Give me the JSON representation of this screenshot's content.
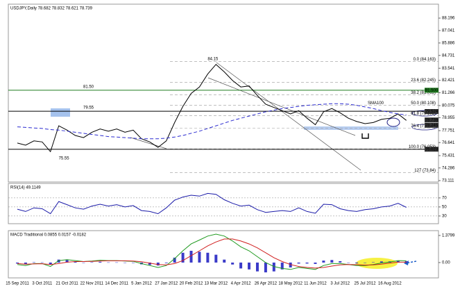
{
  "chart_data": [
    {
      "type": "line",
      "title": "USDJPY,Daily 78.682 78.832 78.621 78.739",
      "categories": [
        "15 Sep 2011",
        null,
        null,
        "3 Oct 2011",
        null,
        null,
        "21 Oct 2011",
        null,
        null,
        "22 Nov 2011",
        null,
        null,
        "14 Dec 2011",
        null,
        null,
        "5 Jan 2012",
        null,
        null,
        "27 Jan 2012",
        null,
        null,
        "20 Feb 2012",
        null,
        null,
        "13 Mar 2012",
        null,
        null,
        "4 Apr 2012",
        null,
        null,
        "26 Apr 2012",
        null,
        null,
        "18 May 2012",
        null,
        null,
        "11 Jun 2012",
        null,
        null,
        "3 Jul 2012",
        null,
        null,
        "25 Jul 2012",
        null,
        null,
        "16 Aug 2012",
        null,
        null
      ],
      "series": [
        {
          "color": "#000000",
          "values": [
            76.6,
            76.4,
            76.8,
            76.7,
            75.8,
            78.2,
            77.8,
            77.3,
            77.1,
            77.6,
            77.9,
            77.7,
            77.9,
            77.6,
            77.8,
            77.0,
            76.7,
            76.2,
            76.8,
            78.5,
            80.0,
            81.2,
            81.8,
            83.0,
            83.9,
            83.2,
            82.4,
            81.8,
            81.9,
            81.0,
            80.2,
            79.9,
            79.6,
            79.3,
            79.6,
            78.9,
            78.3,
            79.5,
            79.8,
            79.4,
            78.9,
            78.6,
            78.4,
            78.5,
            78.8,
            78.9,
            79.3,
            78.7
          ]
        },
        {
          "name": "SMA100",
          "color": "#2b2bd0",
          "dashed": true,
          "values": [
            78.1,
            78.05,
            78.0,
            77.95,
            77.85,
            77.8,
            77.7,
            77.6,
            77.5,
            77.4,
            77.3,
            77.2,
            77.15,
            77.1,
            77.05,
            77.0,
            77.0,
            77.0,
            77.05,
            77.15,
            77.3,
            77.5,
            77.7,
            77.95,
            78.2,
            78.45,
            78.7,
            78.9,
            79.1,
            79.3,
            79.5,
            79.65,
            79.8,
            79.9,
            80.0,
            80.1,
            80.15,
            80.2,
            80.25,
            80.25,
            80.2,
            80.1,
            79.95,
            79.8,
            79.6,
            79.45,
            79.3,
            79.2
          ]
        }
      ],
      "ylim": [
        72.98,
        89.36
      ],
      "yticks": [
        88.196,
        87.041,
        85.886,
        84.731,
        83.541,
        82.421,
        81.266,
        80.075,
        78.955,
        77.751,
        76.641,
        75.431,
        74.286,
        73.111
      ],
      "levels": [
        {
          "value": 81.5,
          "label": "81.50",
          "color": "#1e7a1e"
        },
        {
          "value": 79.55,
          "label": "79.55",
          "color": "#000000"
        }
      ],
      "annotations": [
        {
          "value": 84.15,
          "label": "84.15"
        },
        {
          "value": 75.55,
          "label": "75.55",
          "color": "#1e7a1e"
        }
      ],
      "fib": [
        {
          "value": 84.163,
          "label": "0.0 (84.163)"
        },
        {
          "value": 82.245,
          "label": "23.6 (82.245)"
        },
        {
          "value": 81.063,
          "label": "38.2 (81.063)"
        },
        {
          "value": 80.108,
          "label": "50.0 (80.108)"
        },
        {
          "value": 79.152,
          "label": "61.8 (79.152)"
        },
        {
          "value": 77.97,
          "label": "76.4 (77.970)"
        },
        {
          "value": 76.053,
          "label": "100.0 (76.053)"
        },
        {
          "value": 73.84,
          "label": "127 (73.84)"
        }
      ],
      "markers": [
        {
          "value": 81.5,
          "label": "81.500",
          "color": "#1e7a1e"
        },
        {
          "value": 79.524,
          "label": "79.524",
          "color": "#333333"
        },
        {
          "value": 78.739,
          "label": "78.739",
          "color": "#333333"
        },
        {
          "value": 78.245,
          "label": "78.245",
          "color": "#333333"
        },
        {
          "value": 76.023,
          "label": "76.023",
          "color": "#333333"
        }
      ]
    },
    {
      "type": "line",
      "title": "RSI(14) 49.1149",
      "series": [
        {
          "color": "#1a1aa8",
          "values": [
            45,
            40,
            48,
            46,
            35,
            62,
            55,
            48,
            45,
            52,
            56,
            52,
            55,
            50,
            53,
            42,
            40,
            35,
            48,
            65,
            72,
            76,
            74,
            80,
            78,
            66,
            58,
            52,
            54,
            44,
            38,
            40,
            42,
            40,
            48,
            40,
            36,
            56,
            55,
            46,
            42,
            40,
            44,
            46,
            50,
            52,
            58,
            49
          ]
        }
      ],
      "ylim": [
        16,
        99
      ],
      "yticks": [
        70,
        50,
        30
      ],
      "grid": true
    },
    {
      "type": "line",
      "title": "MACD Traditional 0.0855 0.0157 -0.0182",
      "series": [
        {
          "color": "#3a3ac8",
          "kind": "bar",
          "values": [
            -0.05,
            -0.07,
            0.02,
            0.01,
            -0.1,
            0.15,
            0.13,
            0.05,
            0,
            0.02,
            0.04,
            0.01,
            0.01,
            -0.01,
            -0.02,
            -0.09,
            -0.12,
            -0.15,
            -0.03,
            0.25,
            0.5,
            0.6,
            0.55,
            0.5,
            0.4,
            0.15,
            -0.1,
            -0.3,
            -0.35,
            -0.45,
            -0.5,
            -0.45,
            -0.35,
            -0.25,
            -0.05,
            -0.05,
            -0.07,
            0.1,
            0.13,
            0.07,
            0,
            -0.04,
            -0.02,
            0.02,
            0.06,
            0.06,
            0.08,
            0.07
          ]
        },
        {
          "color": "#1f9a1f",
          "values": [
            -0.1,
            -0.15,
            -0.05,
            -0.05,
            -0.2,
            0.1,
            0.15,
            0.1,
            0.05,
            0.08,
            0.12,
            0.1,
            0.1,
            0.08,
            0.06,
            -0.05,
            -0.15,
            -0.25,
            -0.15,
            0.2,
            0.6,
            0.95,
            1.15,
            1.35,
            1.45,
            1.35,
            1.1,
            0.8,
            0.6,
            0.3,
            0.0,
            -0.2,
            -0.3,
            -0.35,
            -0.25,
            -0.3,
            -0.35,
            -0.15,
            -0.05,
            -0.05,
            -0.1,
            -0.15,
            -0.15,
            -0.1,
            -0.02,
            0.03,
            0.1,
            0.09
          ]
        },
        {
          "color": "#d01e1e",
          "values": [
            -0.05,
            -0.08,
            -0.07,
            -0.06,
            -0.1,
            -0.05,
            0.02,
            0.05,
            0.05,
            0.06,
            0.08,
            0.09,
            0.09,
            0.09,
            0.08,
            0.04,
            -0.03,
            -0.1,
            -0.12,
            -0.05,
            0.1,
            0.35,
            0.6,
            0.85,
            1.05,
            1.2,
            1.2,
            1.1,
            0.95,
            0.75,
            0.5,
            0.25,
            0.05,
            -0.1,
            -0.2,
            -0.25,
            -0.28,
            -0.25,
            -0.18,
            -0.12,
            -0.1,
            -0.11,
            -0.13,
            -0.12,
            -0.08,
            -0.03,
            0.02,
            0.02
          ]
        }
      ],
      "ylim": [
        -0.71,
        1.52
      ],
      "yticks": [
        1.3799,
        {
          "value": 0,
          "label": "0.00"
        }
      ]
    }
  ]
}
